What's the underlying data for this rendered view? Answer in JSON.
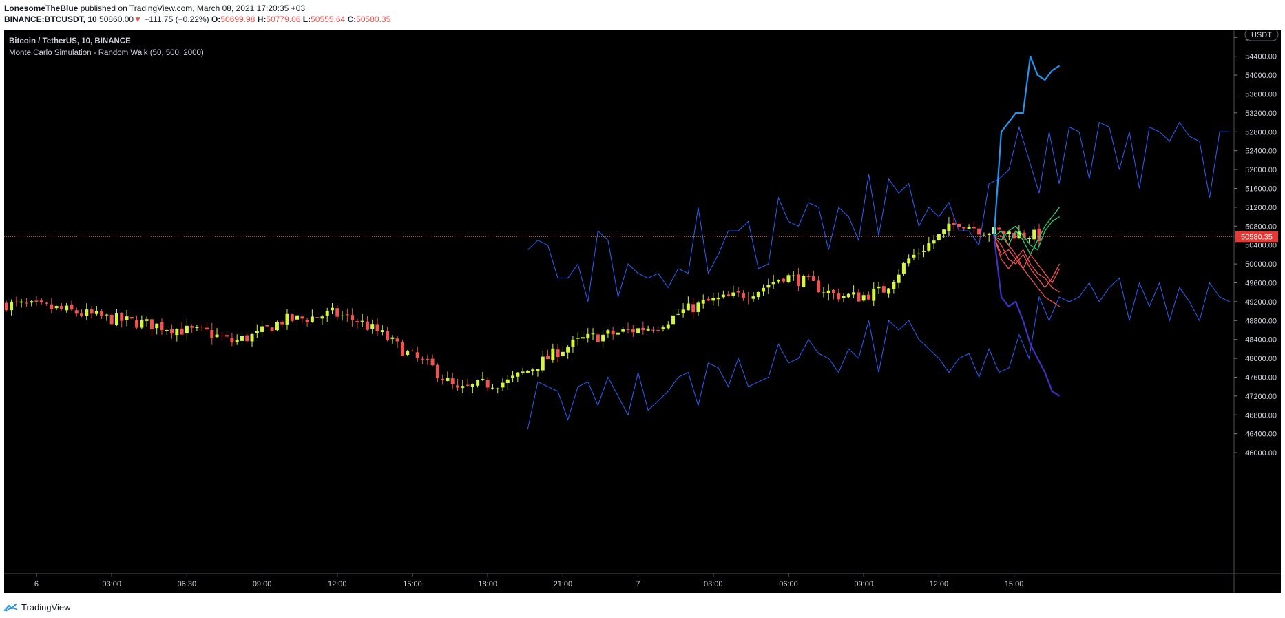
{
  "header": {
    "author": "LonesomeTheBlue",
    "published_text": "published on TradingView.com, March 08, 2021 17:20:35 +03",
    "symbol": "BINANCE:BTCUSDT, 10",
    "last_price": "50860.00",
    "change_arrow": "▼",
    "change": "−111.75 (−0.22%)",
    "o_label": "O:",
    "o_value": "50699.98",
    "h_label": "H:",
    "h_value": "50779.06",
    "l_label": "L:",
    "l_value": "50555.64",
    "c_label": "C:",
    "c_value": "50580.35"
  },
  "legend": {
    "title": "Bitcoin / TetherUS, 10, BINANCE",
    "indicator": "Monte Carlo Simulation - Random Walk (50, 500, 2000)"
  },
  "price_axis": {
    "currency": "USDT",
    "current_price_label": "50580.35"
  },
  "footer": {
    "brand": "TradingView"
  },
  "colors": {
    "background": "#000000",
    "up_candle": "#d4f542",
    "down_candle": "#ef5350",
    "band_lines": "#2962ff",
    "max_path": "#2196f3",
    "min_path": "#3f33c4",
    "sim_up": "#2ecc71",
    "sim_down": "#ef5350",
    "price_line": "#ef5350"
  },
  "chart_data": {
    "type": "candlestick",
    "y_axis": {
      "min": 45800,
      "max": 54950,
      "step": 400,
      "position": "right"
    },
    "x_ticks": [
      "6",
      "03:00",
      "06:30",
      "09:00",
      "12:00",
      "15:00",
      "18:00",
      "21:00",
      "7",
      "03:00",
      "06:00",
      "09:00",
      "12:00",
      "15:00"
    ],
    "x_tick_bars": [
      6,
      21,
      36,
      51,
      66,
      81,
      96,
      111,
      126,
      141,
      156,
      171,
      186,
      201
    ],
    "bar_count": 221,
    "close_anchors": [
      [
        0,
        49150
      ],
      [
        10,
        49050
      ],
      [
        20,
        48850
      ],
      [
        30,
        48700
      ],
      [
        35,
        48600
      ],
      [
        40,
        48550
      ],
      [
        45,
        48350
      ],
      [
        50,
        48500
      ],
      [
        55,
        48800
      ],
      [
        60,
        48850
      ],
      [
        65,
        48950
      ],
      [
        70,
        48800
      ],
      [
        75,
        48500
      ],
      [
        80,
        48100
      ],
      [
        85,
        47800
      ],
      [
        90,
        47300
      ],
      [
        95,
        47450
      ],
      [
        100,
        47500
      ],
      [
        105,
        47800
      ],
      [
        110,
        48150
      ],
      [
        115,
        48400
      ],
      [
        120,
        48500
      ],
      [
        125,
        48600
      ],
      [
        130,
        48700
      ],
      [
        135,
        49000
      ],
      [
        140,
        49200
      ],
      [
        145,
        49300
      ],
      [
        150,
        49450
      ],
      [
        155,
        49750
      ],
      [
        160,
        49600
      ],
      [
        165,
        49350
      ],
      [
        170,
        49300
      ],
      [
        175,
        49450
      ],
      [
        180,
        50100
      ],
      [
        185,
        50500
      ],
      [
        190,
        50900
      ],
      [
        195,
        50700
      ],
      [
        200,
        50650
      ],
      [
        204,
        50620
      ],
      [
        206,
        50580
      ]
    ],
    "upper_band": [
      50300,
      50500,
      50400,
      49700,
      49700,
      50000,
      49200,
      50700,
      50500,
      49300,
      50000,
      49800,
      49700,
      49800,
      49500,
      49900,
      49800,
      51200,
      49800,
      50200,
      50700,
      50700,
      50900,
      49900,
      50000,
      51400,
      50900,
      50800,
      51300,
      51200,
      50300,
      51200,
      51000,
      50500,
      51900,
      50600,
      51800,
      51500,
      51700,
      50800,
      51200,
      51000,
      51300,
      50700,
      50700,
      50400,
      51700,
      51800,
      52000,
      52900,
      52200,
      51500,
      52800,
      51700,
      52900,
      52800,
      51800,
      53000,
      52900,
      52000,
      52800,
      51600,
      52900,
      52800,
      52600,
      53000,
      52700,
      52600,
      51400,
      52800,
      52800
    ],
    "lower_band": [
      46500,
      47500,
      47400,
      47300,
      46700,
      47400,
      47500,
      47000,
      47600,
      47200,
      46800,
      47700,
      46900,
      47100,
      47300,
      47600,
      47700,
      47000,
      47900,
      47800,
      47400,
      48000,
      47400,
      47500,
      47600,
      48300,
      47900,
      48000,
      48400,
      48100,
      48000,
      47700,
      48200,
      48000,
      48800,
      47700,
      48800,
      48600,
      48800,
      48400,
      48200,
      48000,
      47700,
      48000,
      48100,
      47600,
      48200,
      47700,
      47800,
      48500,
      48000,
      49300,
      48800,
      49300,
      49200,
      49300,
      49600,
      49200,
      49500,
      49700,
      48800,
      49600,
      49100,
      49600,
      48800,
      49500,
      49200,
      48800,
      49600,
      49300,
      49200
    ],
    "sim_max_path": [
      50580,
      52800,
      53000,
      53200,
      53200,
      54400,
      54000,
      53900,
      54100,
      54200
    ],
    "sim_min_path": [
      50580,
      49300,
      49100,
      49200,
      48800,
      48300,
      48000,
      47700,
      47300,
      47200
    ],
    "sim_paths": [
      [
        50580,
        50700,
        50400,
        50700,
        50500,
        50200,
        50500,
        50800,
        51000,
        51200
      ],
      [
        50580,
        50500,
        50700,
        50800,
        50600,
        50400,
        50300,
        50700,
        50900,
        51000
      ],
      [
        50580,
        50200,
        50300,
        50100,
        49900,
        50200,
        50000,
        49800,
        49600,
        49900
      ],
      [
        50580,
        50400,
        50100,
        50000,
        50200,
        49900,
        49700,
        49500,
        49700,
        50000
      ],
      [
        50580,
        50600,
        50400,
        50200,
        49900,
        49700,
        49500,
        49300,
        49200,
        49100
      ],
      [
        50580,
        50100,
        49900,
        50100,
        50300,
        50000,
        49800,
        49700,
        49500,
        49400
      ]
    ]
  }
}
